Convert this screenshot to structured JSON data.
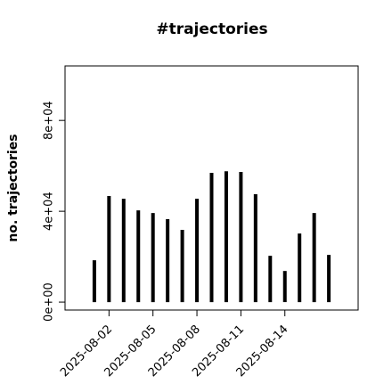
{
  "chart_data": {
    "type": "bar",
    "title": "#trajectories",
    "y_label": "no. trajectories",
    "x": [
      "2025-08-01",
      "2025-08-02",
      "2025-08-03",
      "2025-08-04",
      "2025-08-05",
      "2025-08-06",
      "2025-08-07",
      "2025-08-08",
      "2025-08-09",
      "2025-08-10",
      "2025-08-11",
      "2025-08-12",
      "2025-08-13",
      "2025-08-14",
      "2025-08-15",
      "2025-08-16",
      "2025-08-17"
    ],
    "values": [
      18400,
      46700,
      45500,
      40400,
      39200,
      36500,
      31800,
      45500,
      56900,
      57600,
      57300,
      47500,
      20400,
      13700,
      30200,
      39200,
      20800
    ],
    "color": "#000000",
    "xlim": [
      "2025-07-30",
      "2025-08-19"
    ],
    "xticks": [
      "2025-08-02",
      "2025-08-05",
      "2025-08-08",
      "2025-08-11",
      "2025-08-14"
    ],
    "ylim": [
      -3500,
      104000
    ],
    "yticks": [
      {
        "value": 0,
        "label": "0e+00"
      },
      {
        "value": 40000,
        "label": "4e+04"
      },
      {
        "value": 80000,
        "label": "8e+04"
      }
    ]
  }
}
